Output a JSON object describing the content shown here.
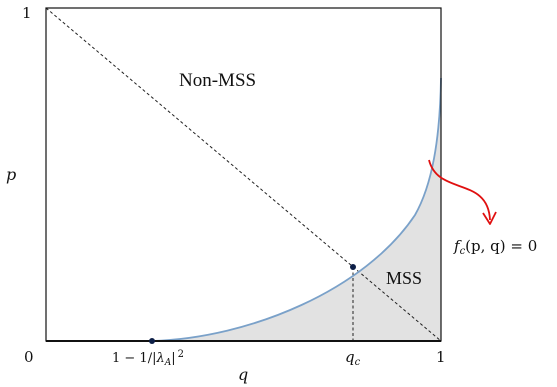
{
  "diagram": {
    "tick_labels": {
      "origin": "0",
      "y_top": "1",
      "x_right": "1",
      "x_low_a": "1 − 1/|",
      "x_low_lambda": "λ",
      "x_low_sub": "A",
      "x_low_b": "|",
      "x_low_exp": "2",
      "q_c_main": "q",
      "q_c_sub": "c"
    },
    "axis_labels": {
      "x": "q",
      "y": "p"
    },
    "regions": {
      "non_mss": "Non-MSS",
      "mss": "MSS"
    },
    "curve_label": {
      "f": "f",
      "sub": "c",
      "rest": "(p, q) = 0"
    },
    "colors": {
      "frame": "#111111",
      "curve": "#7aa1c9",
      "mss_fill": "#e2e2e2",
      "point": "#0d1f47",
      "arrow": "#e01010",
      "dashed": "#222222"
    }
  }
}
